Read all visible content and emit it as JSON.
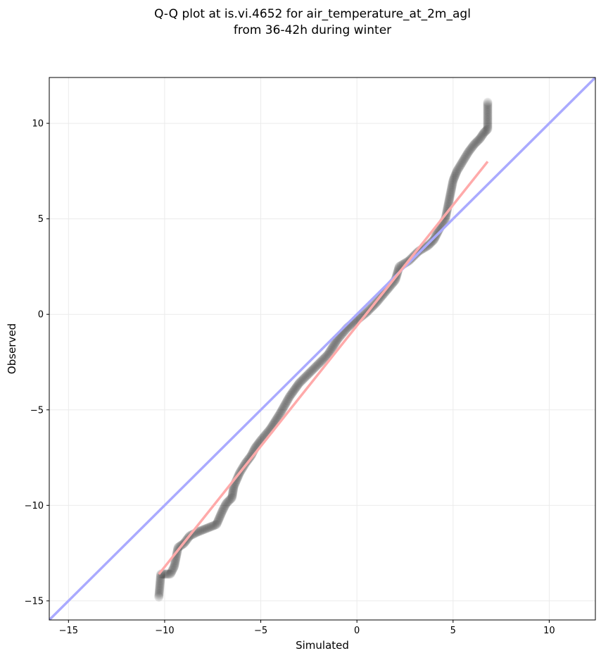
{
  "chart_data": {
    "type": "scatter",
    "title_line1": "Q-Q plot at is.vi.4652 for air_temperature_at_2m_agl",
    "title_line2": "from 36-42h during winter",
    "xlabel": "Simulated",
    "ylabel": "Observed",
    "xlim": [
      -16,
      12.4
    ],
    "ylim": [
      -16,
      12.4
    ],
    "xticks": [
      -15,
      -10,
      -5,
      0,
      5,
      10
    ],
    "yticks": [
      -15,
      -10,
      -5,
      0,
      5,
      10
    ],
    "xtick_labels": [
      "−15",
      "−10",
      "−5",
      "0",
      "5",
      "10"
    ],
    "ytick_labels": [
      "−15",
      "−10",
      "−5",
      "0",
      "5",
      "10"
    ],
    "grid": true,
    "identity_line": {
      "color": "#aaaaff",
      "from": [
        -16,
        -16
      ],
      "to": [
        12.4,
        12.4
      ]
    },
    "fit_line": {
      "color": "#ffaaaa",
      "from": [
        -10.3,
        -13.6
      ],
      "to": [
        6.8,
        8.0
      ]
    },
    "point_color": "#000000",
    "anchors": [
      [
        -10.3,
        -14.8
      ],
      [
        -10.2,
        -13.6
      ],
      [
        -9.7,
        -13.6
      ],
      [
        -9.5,
        -13.2
      ],
      [
        -9.3,
        -12.2
      ],
      [
        -9.0,
        -12.0
      ],
      [
        -8.7,
        -11.6
      ],
      [
        -8.3,
        -11.4
      ],
      [
        -7.8,
        -11.2
      ],
      [
        -7.3,
        -11.0
      ],
      [
        -7.0,
        -10.3
      ],
      [
        -6.8,
        -9.9
      ],
      [
        -6.5,
        -9.6
      ],
      [
        -6.4,
        -9.0
      ],
      [
        -6.1,
        -8.3
      ],
      [
        -5.8,
        -7.8
      ],
      [
        -5.5,
        -7.4
      ],
      [
        -5.3,
        -7.0
      ],
      [
        -5.0,
        -6.6
      ],
      [
        -4.5,
        -6.0
      ],
      [
        -4.0,
        -5.2
      ],
      [
        -3.5,
        -4.3
      ],
      [
        -3.0,
        -3.6
      ],
      [
        -2.5,
        -3.1
      ],
      [
        -2.0,
        -2.6
      ],
      [
        -1.5,
        -2.1
      ],
      [
        -1.0,
        -1.3
      ],
      [
        -0.5,
        -0.7
      ],
      [
        0.0,
        -0.3
      ],
      [
        0.5,
        0.1
      ],
      [
        1.0,
        0.6
      ],
      [
        1.5,
        1.2
      ],
      [
        2.0,
        1.8
      ],
      [
        2.2,
        2.5
      ],
      [
        2.7,
        2.8
      ],
      [
        3.2,
        3.3
      ],
      [
        3.7,
        3.6
      ],
      [
        4.0,
        3.9
      ],
      [
        4.3,
        4.5
      ],
      [
        4.6,
        5.0
      ],
      [
        4.8,
        6.0
      ],
      [
        5.0,
        7.0
      ],
      [
        5.2,
        7.5
      ],
      [
        5.5,
        8.0
      ],
      [
        5.8,
        8.5
      ],
      [
        6.1,
        8.9
      ],
      [
        6.4,
        9.2
      ],
      [
        6.6,
        9.5
      ],
      [
        6.8,
        9.7
      ],
      [
        6.8,
        11.1
      ]
    ]
  }
}
